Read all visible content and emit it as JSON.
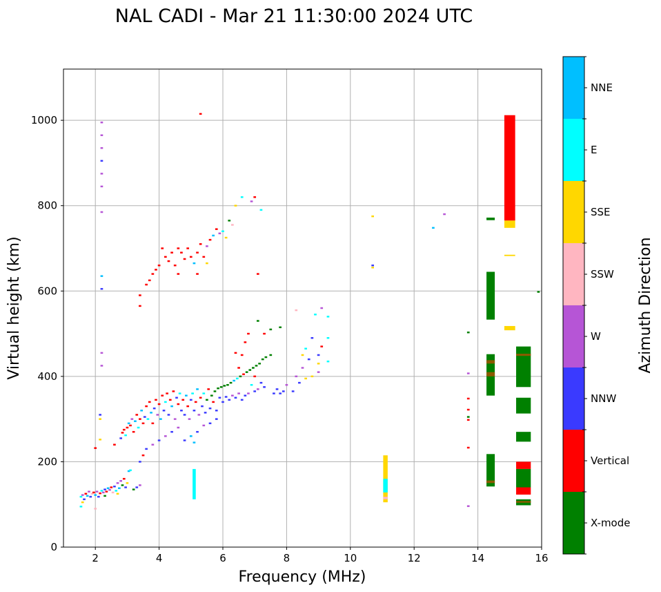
{
  "colors": {
    "X-mode": "#008000",
    "Vertical": "#ff0000",
    "NNW": "#3a3aff",
    "W": "#b655d6",
    "SSW": "#ffb6c1",
    "SSE": "#ffd700",
    "E": "#00ffff",
    "NNE": "#00bfff",
    "Ochre": "#8b5a00"
  },
  "chart_data": {
    "type": "scatter",
    "title": "NAL CADI - Mar 21 11:30:00 2024 UTC",
    "xlabel": "Frequency (MHz)",
    "ylabel": "Virtual height (km)",
    "xlim": [
      1,
      16
    ],
    "ylim": [
      0,
      1120
    ],
    "xticks": [
      2,
      4,
      6,
      8,
      10,
      12,
      14,
      16
    ],
    "yticks": [
      0,
      200,
      400,
      600,
      800,
      1000
    ],
    "grid": true,
    "colorbar": {
      "label": "Azimuth Direction",
      "categories": [
        "X-mode",
        "Vertical",
        "NNW",
        "W",
        "SSW",
        "SSE",
        "E",
        "NNE"
      ]
    },
    "point_width_mhz": 0.08,
    "point_height_km": 4,
    "points": [
      [
        1.55,
        118,
        "E"
      ],
      [
        1.6,
        122,
        "W"
      ],
      [
        1.65,
        112,
        "NNW"
      ],
      [
        1.7,
        125,
        "Vertical"
      ],
      [
        1.75,
        120,
        "NNE"
      ],
      [
        1.8,
        130,
        "W"
      ],
      [
        1.85,
        118,
        "NNW"
      ],
      [
        1.9,
        125,
        "SSW"
      ],
      [
        1.95,
        128,
        "Vertical"
      ],
      [
        2.0,
        122,
        "NNE"
      ],
      [
        2.05,
        130,
        "W"
      ],
      [
        2.1,
        118,
        "NNW"
      ],
      [
        2.15,
        126,
        "Vertical"
      ],
      [
        2.2,
        132,
        "E"
      ],
      [
        2.25,
        128,
        "W"
      ],
      [
        2.3,
        135,
        "NNW"
      ],
      [
        2.35,
        130,
        "Vertical"
      ],
      [
        2.4,
        138,
        "NNE"
      ],
      [
        2.45,
        134,
        "W"
      ],
      [
        2.5,
        140,
        "Vertical"
      ],
      [
        2.55,
        128,
        "SSW"
      ],
      [
        2.6,
        142,
        "NNW"
      ],
      [
        2.65,
        132,
        "E"
      ],
      [
        2.7,
        150,
        "W"
      ],
      [
        2.75,
        138,
        "NNE"
      ],
      [
        2.8,
        155,
        "W"
      ],
      [
        2.85,
        145,
        "X-mode"
      ],
      [
        2.9,
        160,
        "Vertical"
      ],
      [
        2.95,
        140,
        "NNW"
      ],
      [
        3.0,
        150,
        "SSE"
      ],
      [
        3.05,
        178,
        "NNE"
      ],
      [
        3.1,
        180,
        "E"
      ],
      [
        3.2,
        135,
        "X-mode"
      ],
      [
        3.3,
        140,
        "NNW"
      ],
      [
        3.4,
        145,
        "W"
      ],
      [
        1.55,
        95,
        "E"
      ],
      [
        1.6,
        105,
        "SSE"
      ],
      [
        2.0,
        90,
        "SSW"
      ],
      [
        2.3,
        120,
        "X-mode"
      ],
      [
        2.7,
        125,
        "SSE"
      ],
      [
        2.0,
        232,
        "Vertical"
      ],
      [
        2.15,
        252,
        "SSE"
      ],
      [
        2.6,
        240,
        "Vertical"
      ],
      [
        2.8,
        255,
        "NNW"
      ],
      [
        2.85,
        268,
        "Vertical"
      ],
      [
        2.9,
        275,
        "Vertical"
      ],
      [
        2.95,
        262,
        "E"
      ],
      [
        3.0,
        280,
        "Vertical"
      ],
      [
        3.05,
        290,
        "NNE"
      ],
      [
        3.1,
        285,
        "Vertical"
      ],
      [
        3.15,
        300,
        "W"
      ],
      [
        3.2,
        270,
        "Vertical"
      ],
      [
        3.25,
        295,
        "NNE"
      ],
      [
        3.3,
        310,
        "Vertical"
      ],
      [
        3.35,
        280,
        "E"
      ],
      [
        3.4,
        300,
        "Vertical"
      ],
      [
        3.45,
        320,
        "NNE"
      ],
      [
        3.5,
        290,
        "Vertical"
      ],
      [
        3.55,
        305,
        "NNW"
      ],
      [
        3.6,
        330,
        "Vertical"
      ],
      [
        3.65,
        300,
        "E"
      ],
      [
        3.7,
        340,
        "Vertical"
      ],
      [
        3.75,
        315,
        "NNE"
      ],
      [
        3.8,
        290,
        "Vertical"
      ],
      [
        3.85,
        325,
        "NNW"
      ],
      [
        3.9,
        345,
        "Vertical"
      ],
      [
        3.95,
        310,
        "W"
      ],
      [
        4.0,
        335,
        "Vertical"
      ],
      [
        4.05,
        300,
        "NNE"
      ],
      [
        4.1,
        355,
        "Vertical"
      ],
      [
        4.15,
        320,
        "NNW"
      ],
      [
        4.2,
        340,
        "E"
      ],
      [
        4.25,
        360,
        "Vertical"
      ],
      [
        4.3,
        310,
        "NNW"
      ],
      [
        4.35,
        345,
        "Vertical"
      ],
      [
        4.4,
        330,
        "NNE"
      ],
      [
        4.45,
        365,
        "Vertical"
      ],
      [
        4.5,
        300,
        "W"
      ],
      [
        4.55,
        350,
        "NNW"
      ],
      [
        4.6,
        335,
        "Vertical"
      ],
      [
        4.65,
        360,
        "E"
      ],
      [
        4.7,
        320,
        "NNW"
      ],
      [
        4.75,
        345,
        "Vertical"
      ],
      [
        4.8,
        310,
        "NNW"
      ],
      [
        4.85,
        355,
        "NNE"
      ],
      [
        4.9,
        330,
        "Vertical"
      ],
      [
        4.95,
        300,
        "W"
      ],
      [
        5.0,
        345,
        "NNW"
      ],
      [
        5.05,
        360,
        "E"
      ],
      [
        5.1,
        320,
        "NNW"
      ],
      [
        5.15,
        340,
        "Vertical"
      ],
      [
        5.2,
        370,
        "NNE"
      ],
      [
        5.25,
        310,
        "W"
      ],
      [
        5.3,
        350,
        "Vertical"
      ],
      [
        5.35,
        330,
        "NNW"
      ],
      [
        5.4,
        360,
        "E"
      ],
      [
        5.45,
        315,
        "NNW"
      ],
      [
        5.5,
        345,
        "X-mode"
      ],
      [
        5.55,
        370,
        "Vertical"
      ],
      [
        5.6,
        325,
        "NNW"
      ],
      [
        5.65,
        355,
        "X-mode"
      ],
      [
        5.7,
        340,
        "Vertical"
      ],
      [
        5.75,
        365,
        "X-mode"
      ],
      [
        5.8,
        320,
        "NNW"
      ],
      [
        5.85,
        372,
        "X-mode"
      ],
      [
        5.9,
        350,
        "NNW"
      ],
      [
        5.95,
        375,
        "X-mode"
      ],
      [
        6.0,
        340,
        "NNW"
      ],
      [
        6.05,
        378,
        "X-mode"
      ],
      [
        6.1,
        352,
        "NNW"
      ],
      [
        6.15,
        380,
        "X-mode"
      ],
      [
        6.2,
        345,
        "NNW"
      ],
      [
        6.25,
        385,
        "X-mode"
      ],
      [
        6.3,
        355,
        "W"
      ],
      [
        6.35,
        390,
        "NNE"
      ],
      [
        6.4,
        350,
        "NNW"
      ],
      [
        6.45,
        395,
        "E"
      ],
      [
        6.5,
        360,
        "W"
      ],
      [
        6.55,
        400,
        "X-mode"
      ],
      [
        6.6,
        345,
        "NNW"
      ],
      [
        6.65,
        405,
        "Vertical"
      ],
      [
        6.7,
        355,
        "NNW"
      ],
      [
        6.75,
        410,
        "X-mode"
      ],
      [
        6.8,
        360,
        "W"
      ],
      [
        6.85,
        415,
        "X-mode"
      ],
      [
        6.9,
        380,
        "E"
      ],
      [
        6.95,
        420,
        "X-mode"
      ],
      [
        7.0,
        365,
        "NNW"
      ],
      [
        7.05,
        425,
        "X-mode"
      ],
      [
        7.1,
        370,
        "W"
      ],
      [
        7.15,
        430,
        "X-mode"
      ],
      [
        7.2,
        385,
        "NNW"
      ],
      [
        7.25,
        440,
        "X-mode"
      ],
      [
        7.3,
        375,
        "NNW"
      ],
      [
        7.35,
        445,
        "X-mode"
      ],
      [
        7.5,
        450,
        "X-mode"
      ],
      [
        7.6,
        360,
        "NNW"
      ],
      [
        7.7,
        370,
        "NNW"
      ],
      [
        7.8,
        360,
        "NNW"
      ],
      [
        7.9,
        365,
        "NNW"
      ],
      [
        8.0,
        380,
        "W"
      ],
      [
        8.2,
        365,
        "NNW"
      ],
      [
        8.3,
        400,
        "W"
      ],
      [
        8.4,
        385,
        "NNW"
      ],
      [
        8.5,
        420,
        "W"
      ],
      [
        8.6,
        395,
        "SSE"
      ],
      [
        8.7,
        440,
        "NNW"
      ],
      [
        8.8,
        400,
        "SSE"
      ],
      [
        9.0,
        410,
        "W"
      ],
      [
        9.0,
        430,
        "SSE"
      ],
      [
        9.0,
        450,
        "NNW"
      ],
      [
        9.1,
        470,
        "Vertical"
      ],
      [
        9.3,
        435,
        "E"
      ],
      [
        8.5,
        450,
        "SSE"
      ],
      [
        8.6,
        465,
        "E"
      ],
      [
        8.8,
        490,
        "NNW"
      ],
      [
        8.9,
        545,
        "E"
      ],
      [
        9.1,
        560,
        "W"
      ],
      [
        9.3,
        540,
        "E"
      ],
      [
        8.3,
        555,
        "SSW"
      ],
      [
        9.3,
        490,
        "E"
      ],
      [
        3.4,
        200,
        "NNW"
      ],
      [
        3.5,
        215,
        "Vertical"
      ],
      [
        3.6,
        230,
        "NNW"
      ],
      [
        3.8,
        240,
        "W"
      ],
      [
        4.0,
        250,
        "NNW"
      ],
      [
        4.2,
        260,
        "W"
      ],
      [
        4.4,
        270,
        "NNW"
      ],
      [
        4.6,
        280,
        "W"
      ],
      [
        4.8,
        250,
        "NNW"
      ],
      [
        5.0,
        260,
        "NNE"
      ],
      [
        5.2,
        270,
        "NNW"
      ],
      [
        5.4,
        285,
        "W"
      ],
      [
        5.6,
        290,
        "NNW"
      ],
      [
        5.8,
        300,
        "NNW"
      ],
      [
        5.1,
        245,
        "NNE"
      ],
      [
        6.5,
        420,
        "Vertical"
      ],
      [
        6.6,
        450,
        "Vertical"
      ],
      [
        6.7,
        480,
        "Vertical"
      ],
      [
        6.8,
        500,
        "Vertical"
      ],
      [
        7.1,
        530,
        "X-mode"
      ],
      [
        7.3,
        500,
        "Vertical"
      ],
      [
        7.5,
        510,
        "X-mode"
      ],
      [
        7.8,
        515,
        "X-mode"
      ],
      [
        6.4,
        455,
        "Vertical"
      ],
      [
        7.0,
        400,
        "Vertical"
      ],
      [
        3.4,
        565,
        "Vertical"
      ],
      [
        3.4,
        590,
        "Vertical"
      ],
      [
        3.6,
        615,
        "Vertical"
      ],
      [
        3.7,
        625,
        "Vertical"
      ],
      [
        3.8,
        640,
        "Vertical"
      ],
      [
        3.9,
        650,
        "Vertical"
      ],
      [
        4.0,
        660,
        "Vertical"
      ],
      [
        4.1,
        700,
        "Vertical"
      ],
      [
        4.2,
        680,
        "Vertical"
      ],
      [
        4.3,
        670,
        "Vertical"
      ],
      [
        4.4,
        690,
        "Vertical"
      ],
      [
        4.5,
        660,
        "Vertical"
      ],
      [
        4.6,
        700,
        "Vertical"
      ],
      [
        4.7,
        690,
        "Vertical"
      ],
      [
        4.8,
        675,
        "Vertical"
      ],
      [
        4.9,
        700,
        "Vertical"
      ],
      [
        5.0,
        680,
        "Vertical"
      ],
      [
        5.1,
        665,
        "NNE"
      ],
      [
        5.2,
        690,
        "Vertical"
      ],
      [
        5.3,
        710,
        "Vertical"
      ],
      [
        5.4,
        680,
        "Vertical"
      ],
      [
        5.5,
        705,
        "W"
      ],
      [
        5.6,
        720,
        "Vertical"
      ],
      [
        5.7,
        730,
        "NNE"
      ],
      [
        5.8,
        745,
        "Vertical"
      ],
      [
        5.9,
        735,
        "W"
      ],
      [
        6.0,
        740,
        "E"
      ],
      [
        6.1,
        725,
        "SSE"
      ],
      [
        6.2,
        765,
        "X-mode"
      ],
      [
        6.3,
        755,
        "SSW"
      ],
      [
        6.4,
        800,
        "SSE"
      ],
      [
        6.6,
        820,
        "E"
      ],
      [
        6.9,
        810,
        "W"
      ],
      [
        7.0,
        820,
        "Vertical"
      ],
      [
        7.2,
        790,
        "E"
      ],
      [
        5.3,
        1015,
        "Vertical"
      ],
      [
        5.5,
        665,
        "SSE"
      ],
      [
        7.1,
        640,
        "Vertical"
      ],
      [
        4.6,
        640,
        "Vertical"
      ],
      [
        5.2,
        640,
        "Vertical"
      ],
      [
        2.2,
        995,
        "W"
      ],
      [
        2.2,
        965,
        "W"
      ],
      [
        2.2,
        935,
        "W"
      ],
      [
        2.2,
        905,
        "NNW"
      ],
      [
        2.2,
        875,
        "W"
      ],
      [
        2.2,
        845,
        "W"
      ],
      [
        2.2,
        785,
        "W"
      ],
      [
        2.2,
        635,
        "NNE"
      ],
      [
        2.2,
        605,
        "NNW"
      ],
      [
        2.2,
        455,
        "W"
      ],
      [
        2.2,
        425,
        "W"
      ],
      [
        2.15,
        310,
        "NNW"
      ],
      [
        2.15,
        300,
        "SSE"
      ],
      [
        10.7,
        775,
        "SSE"
      ],
      [
        10.7,
        655,
        "SSE"
      ],
      [
        10.7,
        660,
        "NNW"
      ],
      [
        12.6,
        748,
        "NNE"
      ],
      [
        12.95,
        780,
        "W"
      ],
      [
        13.7,
        503,
        "X-mode"
      ],
      [
        13.7,
        407,
        "W"
      ],
      [
        13.7,
        348,
        "Vertical"
      ],
      [
        13.7,
        322,
        "Vertical"
      ],
      [
        13.7,
        305,
        "X-mode"
      ],
      [
        13.7,
        298,
        "Vertical"
      ],
      [
        13.7,
        233,
        "Vertical"
      ],
      [
        13.7,
        96,
        "W"
      ],
      [
        15.9,
        598,
        "X-mode"
      ]
    ],
    "blocks": [
      {
        "x": 5.1,
        "w": 0.1,
        "y0": 112,
        "y1": 183,
        "azimuth": "E"
      },
      {
        "x": 11.1,
        "w": 0.14,
        "y0": 105,
        "y1": 215,
        "azimuth": "SSE"
      },
      {
        "x": 11.1,
        "w": 0.14,
        "y0": 128,
        "y1": 160,
        "azimuth": "E"
      },
      {
        "x": 11.1,
        "w": 0.14,
        "y0": 112,
        "y1": 118,
        "azimuth": "SSW"
      },
      {
        "x": 14.4,
        "w": 0.26,
        "y0": 533,
        "y1": 645,
        "azimuth": "X-mode"
      },
      {
        "x": 14.4,
        "w": 0.26,
        "y0": 355,
        "y1": 452,
        "azimuth": "X-mode"
      },
      {
        "x": 14.4,
        "w": 0.26,
        "y0": 430,
        "y1": 438,
        "azimuth": "Ochre"
      },
      {
        "x": 14.4,
        "w": 0.26,
        "y0": 400,
        "y1": 410,
        "azimuth": "Ochre"
      },
      {
        "x": 14.4,
        "w": 0.26,
        "y0": 142,
        "y1": 218,
        "azimuth": "X-mode"
      },
      {
        "x": 14.4,
        "w": 0.26,
        "y0": 150,
        "y1": 156,
        "azimuth": "Ochre"
      },
      {
        "x": 14.4,
        "w": 0.26,
        "y0": 766,
        "y1": 772,
        "azimuth": "X-mode"
      },
      {
        "x": 15.0,
        "w": 0.34,
        "y0": 765,
        "y1": 1012,
        "azimuth": "Vertical"
      },
      {
        "x": 15.0,
        "w": 0.34,
        "y0": 748,
        "y1": 765,
        "azimuth": "SSE"
      },
      {
        "x": 15.0,
        "w": 0.34,
        "y0": 508,
        "y1": 518,
        "azimuth": "SSE"
      },
      {
        "x": 15.0,
        "w": 0.34,
        "y0": 682,
        "y1": 685,
        "azimuth": "SSE"
      },
      {
        "x": 15.43,
        "w": 0.46,
        "y0": 375,
        "y1": 470,
        "azimuth": "X-mode"
      },
      {
        "x": 15.43,
        "w": 0.46,
        "y0": 448,
        "y1": 453,
        "azimuth": "Ochre"
      },
      {
        "x": 15.43,
        "w": 0.46,
        "y0": 313,
        "y1": 350,
        "azimuth": "X-mode"
      },
      {
        "x": 15.43,
        "w": 0.46,
        "y0": 247,
        "y1": 270,
        "azimuth": "X-mode"
      },
      {
        "x": 15.43,
        "w": 0.46,
        "y0": 183,
        "y1": 200,
        "azimuth": "Vertical"
      },
      {
        "x": 15.43,
        "w": 0.46,
        "y0": 140,
        "y1": 183,
        "azimuth": "X-mode"
      },
      {
        "x": 15.43,
        "w": 0.46,
        "y0": 123,
        "y1": 140,
        "azimuth": "Vertical"
      },
      {
        "x": 15.43,
        "w": 0.46,
        "y0": 98,
        "y1": 112,
        "azimuth": "X-mode"
      },
      {
        "x": 15.43,
        "w": 0.46,
        "y0": 104,
        "y1": 108,
        "azimuth": "Ochre"
      }
    ]
  }
}
